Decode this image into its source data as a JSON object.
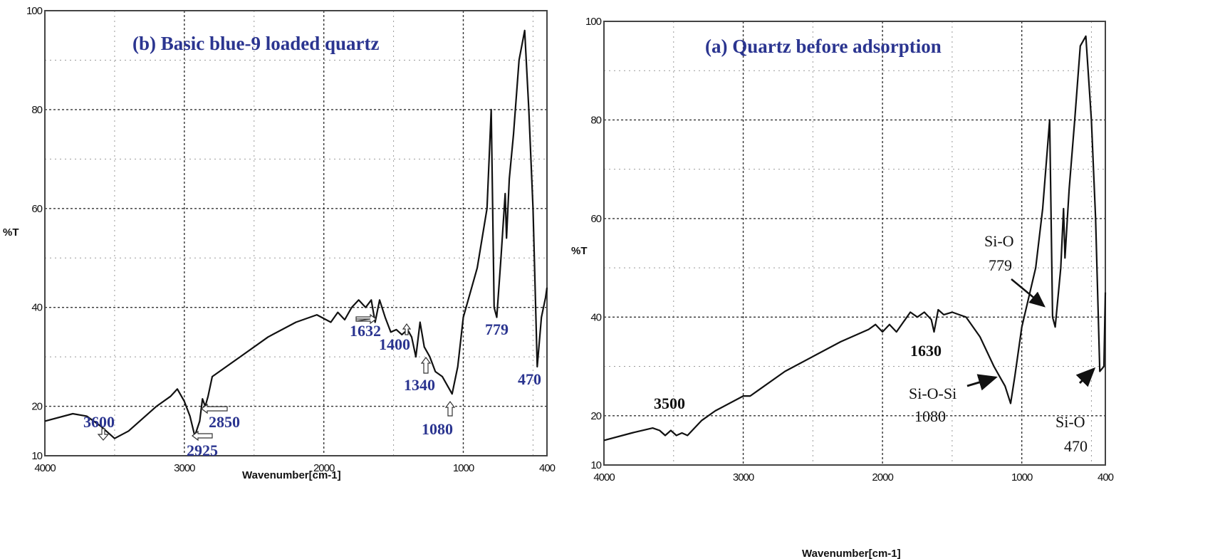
{
  "chart_data": [
    {
      "type": "line",
      "panel": "left",
      "title": "(b) Basic blue-9 loaded quartz",
      "xlabel": "Wavenumber[cm-1]",
      "ylabel": "%T",
      "xlim": [
        4000,
        400
      ],
      "ylim": [
        10,
        100
      ],
      "xticks": [
        "4000",
        "3000",
        "2000",
        "1000",
        "400"
      ],
      "yticks": [
        "10",
        "20",
        "40",
        "60",
        "80",
        "100"
      ],
      "grid": true,
      "x": [
        4000,
        3800,
        3700,
        3600,
        3500,
        3400,
        3200,
        3100,
        3050,
        3000,
        2960,
        2925,
        2890,
        2870,
        2850,
        2830,
        2800,
        2600,
        2400,
        2200,
        2050,
        1950,
        1900,
        1850,
        1800,
        1750,
        1700,
        1660,
        1632,
        1600,
        1560,
        1520,
        1480,
        1440,
        1400,
        1370,
        1340,
        1310,
        1280,
        1240,
        1200,
        1150,
        1080,
        1040,
        1000,
        900,
        830,
        800,
        779,
        760,
        730,
        700,
        690,
        670,
        640,
        600,
        560,
        530,
        500,
        470,
        440,
        410,
        400
      ],
      "y": [
        17,
        18.5,
        18,
        16,
        13.5,
        15,
        20,
        22,
        23.5,
        21,
        18,
        14,
        17,
        21.5,
        20,
        22,
        26,
        30,
        34,
        37,
        38.5,
        37,
        39,
        37.5,
        40,
        41.5,
        40,
        41.5,
        37,
        41.5,
        38,
        35,
        35.5,
        34.5,
        35.5,
        34,
        30,
        37,
        32,
        30,
        27,
        26,
        22.5,
        28,
        38,
        48,
        60,
        80,
        40,
        38,
        50,
        63,
        54,
        66,
        75,
        90,
        96,
        80,
        60,
        28,
        38,
        42,
        44
      ],
      "annotations": [
        {
          "label": "3600",
          "x": 3600
        },
        {
          "label": "2925",
          "x": 2925
        },
        {
          "label": "2850",
          "x": 2850
        },
        {
          "label": "1632",
          "x": 1632
        },
        {
          "label": "1400",
          "x": 1400
        },
        {
          "label": "1340",
          "x": 1340
        },
        {
          "label": "1080",
          "x": 1080
        },
        {
          "label": "779",
          "x": 779
        },
        {
          "label": "470",
          "x": 470
        }
      ]
    },
    {
      "type": "line",
      "panel": "right",
      "title": "(a) Quartz before adsorption",
      "xlabel": "Wavenumber[cm-1]",
      "ylabel": "%T",
      "xlim": [
        4000,
        400
      ],
      "ylim": [
        10,
        100
      ],
      "xticks": [
        "4000",
        "3000",
        "2000",
        "1000",
        "400"
      ],
      "yticks": [
        "10",
        "20",
        "40",
        "60",
        "80",
        "100"
      ],
      "grid": true,
      "x": [
        4000,
        3800,
        3650,
        3600,
        3560,
        3520,
        3480,
        3440,
        3400,
        3300,
        3200,
        3000,
        2950,
        2900,
        2700,
        2500,
        2300,
        2100,
        2050,
        2000,
        1950,
        1900,
        1850,
        1800,
        1750,
        1700,
        1650,
        1630,
        1600,
        1560,
        1500,
        1450,
        1400,
        1300,
        1200,
        1160,
        1120,
        1080,
        1050,
        1000,
        900,
        850,
        800,
        779,
        760,
        720,
        700,
        690,
        660,
        620,
        580,
        540,
        500,
        470,
        440,
        410,
        400
      ],
      "y": [
        15,
        16.5,
        17.5,
        17,
        16,
        17,
        16,
        16.5,
        16,
        19,
        21,
        24,
        24,
        25,
        29,
        32,
        35,
        37.5,
        38.5,
        37,
        38.5,
        37,
        39,
        41,
        40,
        41,
        39.5,
        37,
        41.5,
        40.5,
        41,
        40.5,
        40,
        36,
        30,
        28,
        26,
        22.5,
        28,
        38,
        50,
        62,
        80,
        40,
        38,
        50,
        62,
        52,
        66,
        80,
        95,
        97,
        80,
        60,
        29,
        30,
        45
      ],
      "annotations": [
        {
          "label": "3500",
          "x": 3500
        },
        {
          "label": "1630",
          "x": 1630
        },
        {
          "label": "Si-O-Si",
          "sub": "1080",
          "x": 1080
        },
        {
          "label": "Si-O",
          "sub": "779",
          "x": 779
        },
        {
          "label": "Si-O",
          "sub": "470",
          "x": 470
        }
      ]
    }
  ]
}
